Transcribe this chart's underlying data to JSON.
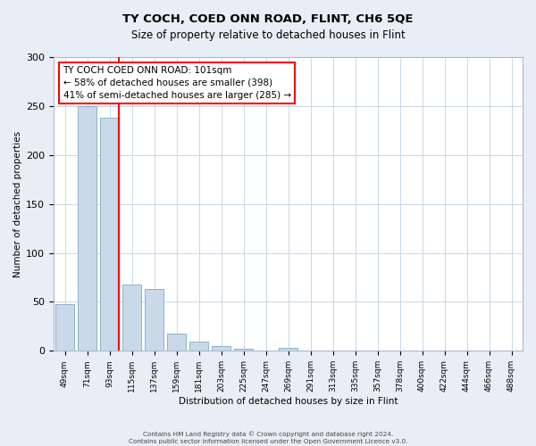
{
  "title": "TY COCH, COED ONN ROAD, FLINT, CH6 5QE",
  "subtitle": "Size of property relative to detached houses in Flint",
  "xlabel": "Distribution of detached houses by size in Flint",
  "ylabel": "Number of detached properties",
  "bar_labels": [
    "49sqm",
    "71sqm",
    "93sqm",
    "115sqm",
    "137sqm",
    "159sqm",
    "181sqm",
    "203sqm",
    "225sqm",
    "247sqm",
    "269sqm",
    "291sqm",
    "313sqm",
    "335sqm",
    "357sqm",
    "378sqm",
    "400sqm",
    "422sqm",
    "444sqm",
    "466sqm",
    "488sqm"
  ],
  "bar_heights": [
    48,
    250,
    238,
    68,
    63,
    18,
    9,
    5,
    2,
    0,
    3,
    0,
    0,
    0,
    0,
    0,
    0,
    0,
    0,
    0,
    0
  ],
  "bar_color": "#c9d9e8",
  "bar_edge_color": "#7fa8c9",
  "vline_x_index": 2,
  "vline_color": "red",
  "annotation_title": "TY COCH COED ONN ROAD: 101sqm",
  "annotation_line1": "← 58% of detached houses are smaller (398)",
  "annotation_line2": "41% of semi-detached houses are larger (285) →",
  "annotation_box_color": "red",
  "ylim": [
    0,
    300
  ],
  "yticks": [
    0,
    50,
    100,
    150,
    200,
    250,
    300
  ],
  "footer1": "Contains HM Land Registry data © Crown copyright and database right 2024.",
  "footer2": "Contains public sector information licensed under the Open Government Licence v3.0.",
  "bg_color": "#e8eef5",
  "plot_bg_color": "#ffffff",
  "grid_color": "#c8d8e8"
}
